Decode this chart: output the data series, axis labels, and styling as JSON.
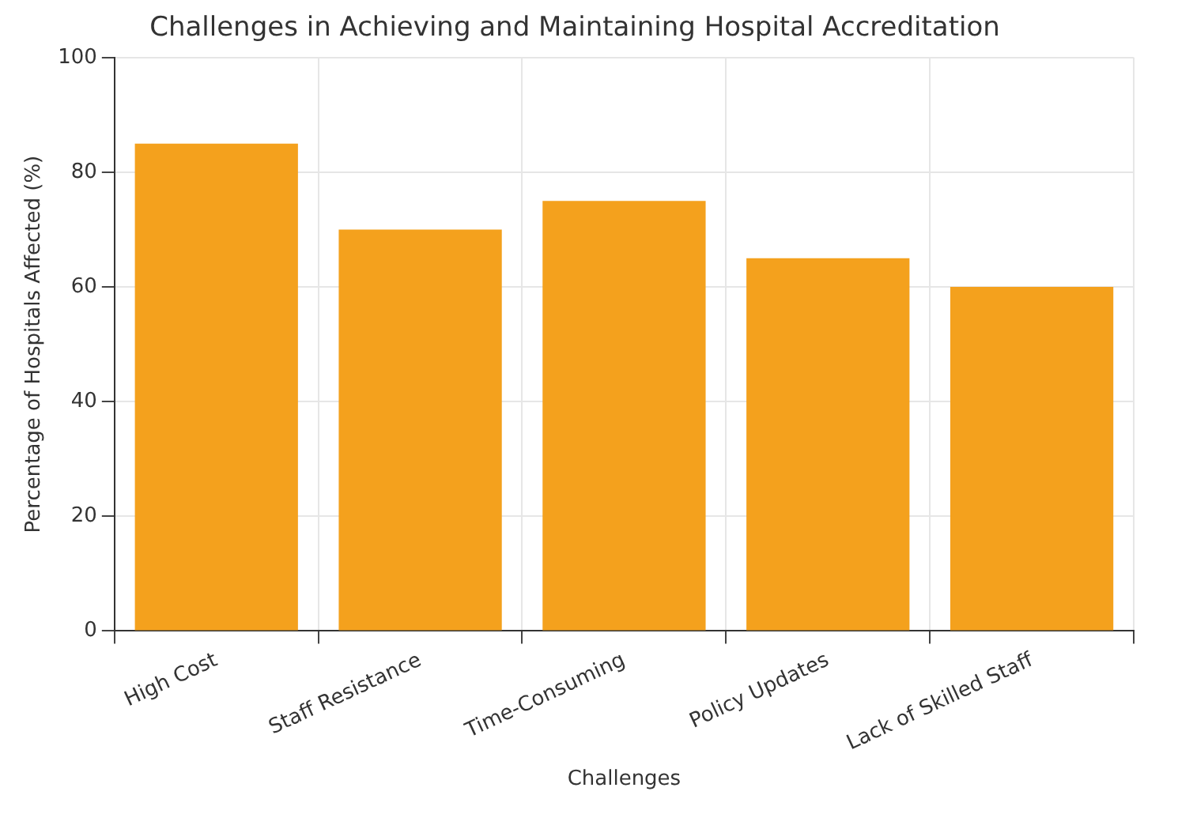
{
  "chart_data": {
    "type": "bar",
    "title": "Challenges in Achieving and Maintaining Hospital Accreditation",
    "xlabel": "Challenges",
    "ylabel": "Percentage of Hospitals Affected (%)",
    "categories": [
      "High Cost",
      "Staff Resistance",
      "Time-Consuming",
      "Policy Updates",
      "Lack of Skilled Staff"
    ],
    "values": [
      85,
      70,
      75,
      65,
      60
    ],
    "color": "#f4a11d",
    "ylim": [
      0,
      100
    ],
    "yticks": [
      0,
      20,
      40,
      60,
      80,
      100
    ],
    "grid": true
  }
}
